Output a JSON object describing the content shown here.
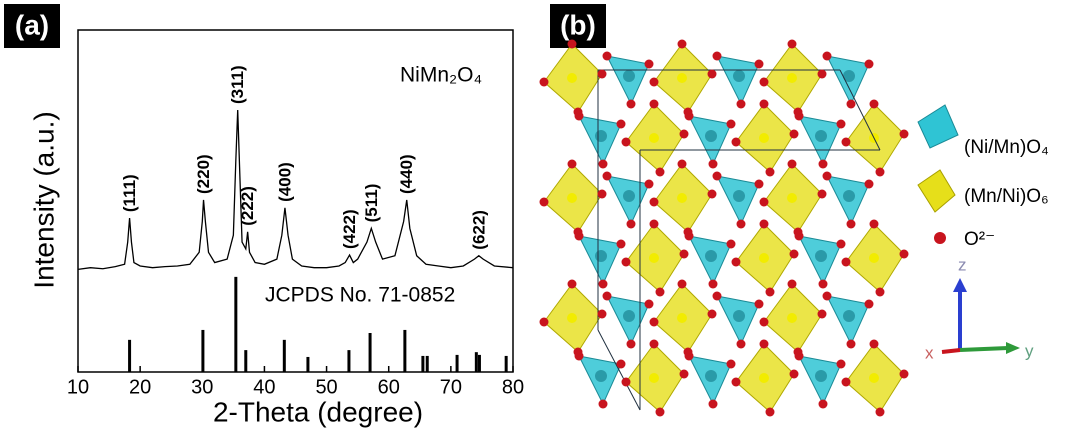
{
  "panels": {
    "a": "(a)",
    "b": "(b)"
  },
  "chart_data": {
    "type": "line",
    "xlabel": "2-Theta (degree)",
    "ylabel": "Intensity (a.u.)",
    "xlim": [
      10,
      80
    ],
    "xticks": [
      10,
      20,
      30,
      40,
      50,
      60,
      70,
      80
    ],
    "ylim": [
      0,
      100
    ],
    "series": [
      {
        "name": "NiMn₂O₄",
        "color": "#000000",
        "x": [
          10,
          12,
          14,
          16,
          17.5,
          18,
          18.3,
          18.6,
          19,
          20,
          22,
          24,
          26,
          28,
          29.5,
          30,
          30.2,
          30.5,
          31,
          32,
          34,
          35,
          35.4,
          35.7,
          36,
          36.4,
          37,
          37.3,
          37.6,
          38.5,
          40,
          42,
          42.8,
          43.3,
          43.8,
          44.5,
          46,
          48,
          50,
          52,
          53,
          53.7,
          54.3,
          55,
          56.5,
          57.2,
          57.9,
          59,
          61,
          62.4,
          62.9,
          63.4,
          64.5,
          66,
          68,
          70,
          72,
          73.8,
          74.5,
          75.2,
          77,
          80
        ],
        "values": [
          30,
          30.5,
          30.2,
          30.8,
          31.5,
          38,
          45,
          38,
          32,
          31,
          30.5,
          30.8,
          31,
          31.5,
          35,
          44,
          50.3,
          44,
          35,
          32,
          33,
          40,
          62,
          76.6,
          60,
          38,
          36,
          41,
          35,
          32,
          31.5,
          33,
          40,
          48,
          40,
          33,
          31,
          30.5,
          30.5,
          31,
          32,
          34.2,
          32,
          33,
          38,
          42,
          38,
          33,
          34,
          44,
          50.3,
          42,
          34,
          31.5,
          31,
          30.5,
          31,
          33,
          34,
          33,
          31,
          30.5
        ]
      },
      {
        "name": "JCPDS No. 71-0852",
        "color": "#000000",
        "x": [
          18.3,
          30.1,
          35.4,
          37.0,
          43.2,
          47.0,
          53.6,
          57.0,
          62.6,
          65.5,
          66.2,
          71.0,
          74.1,
          74.6,
          78.9
        ],
        "values": [
          9.4,
          12.3,
          27.8,
          6.4,
          9.4,
          4.4,
          6.4,
          11.4,
          12.3,
          4.7,
          4.7,
          5,
          5.8,
          5,
          4.7
        ]
      }
    ],
    "annotations": [
      {
        "text": "(111)",
        "x": 18.3
      },
      {
        "text": "(220)",
        "x": 30.2
      },
      {
        "text": "(311)",
        "x": 35.7
      },
      {
        "text": "(222)",
        "x": 37.3
      },
      {
        "text": "(400)",
        "x": 43.3
      },
      {
        "text": "(422)",
        "x": 53.7
      },
      {
        "text": "(511)",
        "x": 57.2
      },
      {
        "text": "(440)",
        "x": 62.9
      },
      {
        "text": "(622)",
        "x": 74.5
      }
    ]
  },
  "structure": {
    "legend": [
      "(Ni/Mn)O₄",
      "(Mn/Ni)O₆",
      "O²⁻"
    ],
    "axes": {
      "z": "z",
      "x": "x",
      "y": "y"
    }
  }
}
